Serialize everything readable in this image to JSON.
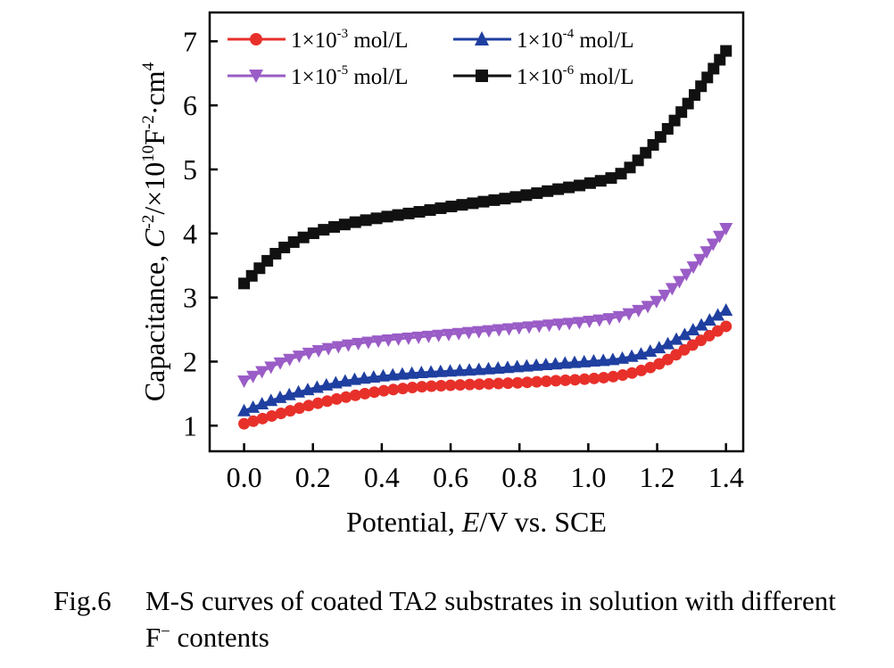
{
  "chart_data": {
    "type": "scatter",
    "xlabel": {
      "prefix": "Potential, ",
      "italic": "E",
      "suffix": "/V vs. SCE"
    },
    "ylabel": {
      "prefix": "Capacitance, ",
      "italic": "C",
      "sup1": "-2",
      "mid": "/×10",
      "sup2": "10",
      "unit": "F",
      "sup3": "-2",
      "unit2": "·cm",
      "sup4": "4"
    },
    "xlim": [
      -0.1,
      1.45
    ],
    "ylim": [
      0.6,
      7.45
    ],
    "xticks": [
      "0.0",
      "0.2",
      "0.4",
      "0.6",
      "0.8",
      "1.0",
      "1.2",
      "1.4"
    ],
    "yticks": [
      "1",
      "2",
      "3",
      "4",
      "5",
      "6",
      "7"
    ],
    "grid": false,
    "legend_position": "top",
    "series": [
      {
        "name": "1×10",
        "exp": "-3",
        "unit": " mol/L",
        "color": "#e8302a",
        "marker": "circle",
        "x": [
          0.0,
          0.1,
          0.2,
          0.3,
          0.4,
          0.5,
          0.6,
          0.7,
          0.8,
          0.9,
          1.0,
          1.1,
          1.2,
          1.3,
          1.4
        ],
        "y": [
          1.03,
          1.18,
          1.33,
          1.45,
          1.54,
          1.6,
          1.63,
          1.65,
          1.67,
          1.7,
          1.73,
          1.79,
          1.95,
          2.25,
          2.55
        ]
      },
      {
        "name": "1×10",
        "exp": "-4",
        "unit": " mol/L",
        "color": "#1f3fa0",
        "marker": "triangle-up",
        "x": [
          0.0,
          0.1,
          0.2,
          0.3,
          0.4,
          0.5,
          0.6,
          0.7,
          0.8,
          0.9,
          1.0,
          1.1,
          1.2,
          1.3,
          1.4
        ],
        "y": [
          1.23,
          1.43,
          1.58,
          1.7,
          1.77,
          1.82,
          1.85,
          1.88,
          1.92,
          1.96,
          2.0,
          2.05,
          2.2,
          2.48,
          2.8
        ]
      },
      {
        "name": "1×10",
        "exp": "-5",
        "unit": " mol/L",
        "color": "#9a5cc6",
        "marker": "triangle-down",
        "x": [
          0.0,
          0.1,
          0.2,
          0.3,
          0.4,
          0.5,
          0.6,
          0.7,
          0.8,
          0.9,
          1.0,
          1.1,
          1.2,
          1.3,
          1.4
        ],
        "y": [
          1.7,
          1.97,
          2.15,
          2.26,
          2.33,
          2.38,
          2.43,
          2.48,
          2.53,
          2.58,
          2.63,
          2.72,
          2.95,
          3.45,
          4.08
        ]
      },
      {
        "name": "1×10",
        "exp": "-6",
        "unit": " mol/L",
        "color": "#111111",
        "marker": "square",
        "x": [
          0.0,
          0.1,
          0.2,
          0.3,
          0.4,
          0.5,
          0.6,
          0.7,
          0.8,
          0.9,
          1.0,
          1.1,
          1.2,
          1.3,
          1.4
        ],
        "y": [
          3.22,
          3.72,
          4.0,
          4.15,
          4.25,
          4.33,
          4.42,
          4.5,
          4.58,
          4.68,
          4.78,
          4.95,
          5.45,
          6.1,
          6.85
        ]
      }
    ]
  },
  "caption": {
    "number": "Fig.6",
    "line1": "M-S curves of coated TA2 substrates in solution with different",
    "line2_prefix": "F",
    "line2_sup": "−",
    "line2_suffix": " contents"
  }
}
